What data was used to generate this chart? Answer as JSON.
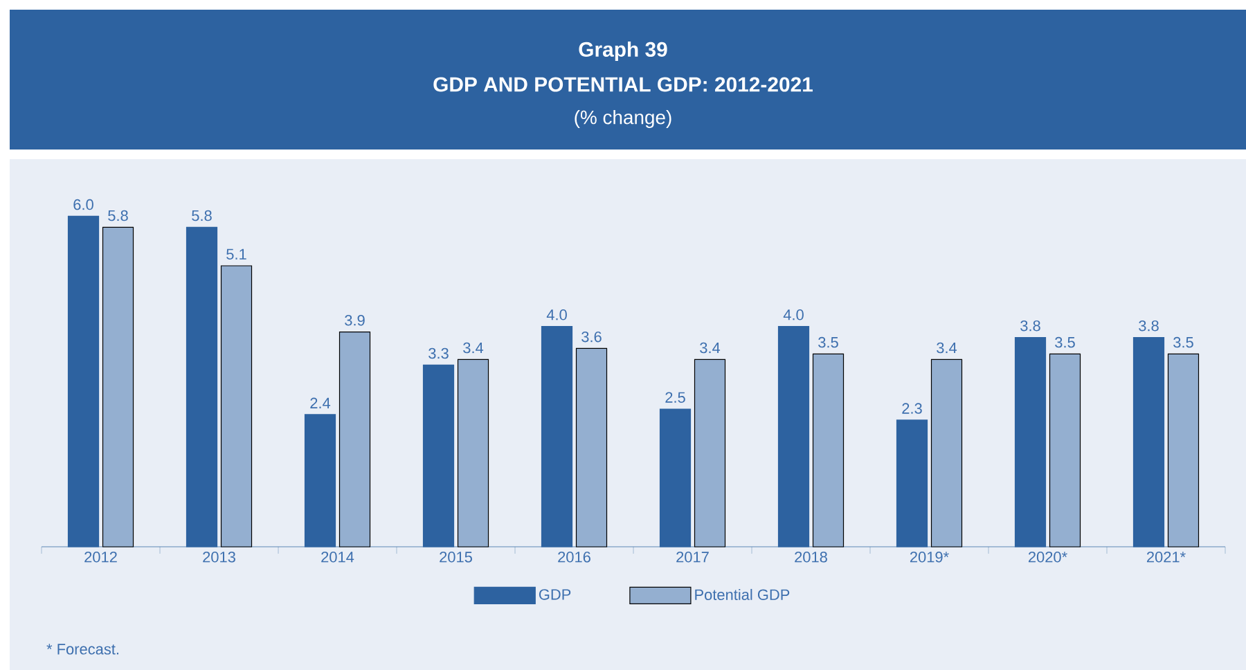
{
  "chart_data": {
    "type": "bar",
    "title": "Graph 39",
    "subtitle": "GDP AND POTENTIAL GDP: 2012-2021",
    "categories": [
      "2012",
      "2013",
      "2014",
      "2015",
      "2016",
      "2017",
      "2018",
      "2019*",
      "2020*",
      "2021*"
    ],
    "series": [
      {
        "name": "GDP",
        "color": "#2d62a0",
        "values": [
          6.0,
          5.8,
          2.4,
          3.3,
          4.0,
          2.5,
          4.0,
          2.3,
          3.8,
          3.8
        ],
        "value_labels": [
          "6.0",
          "5.8",
          "2.4",
          "3.3",
          "4.0",
          "2.5",
          "4.0",
          "2.3",
          "3.8",
          "3.8"
        ]
      },
      {
        "name": "Potential GDP",
        "color": "#94afd0",
        "values": [
          5.8,
          5.1,
          3.9,
          3.4,
          3.6,
          3.4,
          3.5,
          3.4,
          3.5,
          3.5
        ],
        "value_labels": [
          "5.8",
          "5.1",
          "3.9",
          "3.4",
          "3.6",
          "3.4",
          "3.5",
          "3.4",
          "3.5",
          "3.5"
        ]
      }
    ],
    "legend": "bottom",
    "annotations": [
      "(% change)",
      "* Forecast."
    ]
  }
}
